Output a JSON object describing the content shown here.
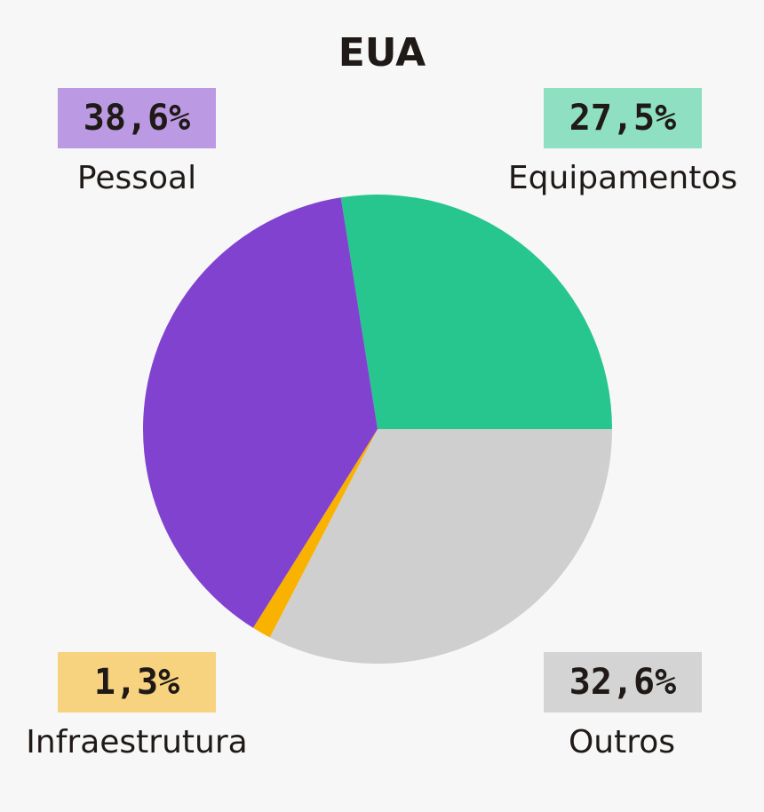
{
  "chart_data": {
    "type": "pie",
    "title": "EUA",
    "categories": [
      "Equipamentos",
      "Outros",
      "Infraestrutura",
      "Pessoal"
    ],
    "values": [
      27.5,
      32.6,
      1.3,
      38.6
    ],
    "value_labels": [
      "27,5%",
      "32,6%",
      "1,3%",
      "38,6%"
    ],
    "colors": [
      "#27c68e",
      "#cfcfcf",
      "#f9b200",
      "#8042cf"
    ],
    "label_bg_colors": [
      "#8fe0c3",
      "#d4d4d4",
      "#f7d37f",
      "#bc9ae3"
    ],
    "start_angle_deg": -9,
    "direction": "clockwise"
  },
  "labels": {
    "pessoal": {
      "value": "38,6%",
      "name": "Pessoal"
    },
    "equipamentos": {
      "value": "27,5%",
      "name": "Equipamentos"
    },
    "infraestrutura": {
      "value": "1,3%",
      "name": "Infraestrutura"
    },
    "outros": {
      "value": "32,6%",
      "name": "Outros"
    }
  }
}
